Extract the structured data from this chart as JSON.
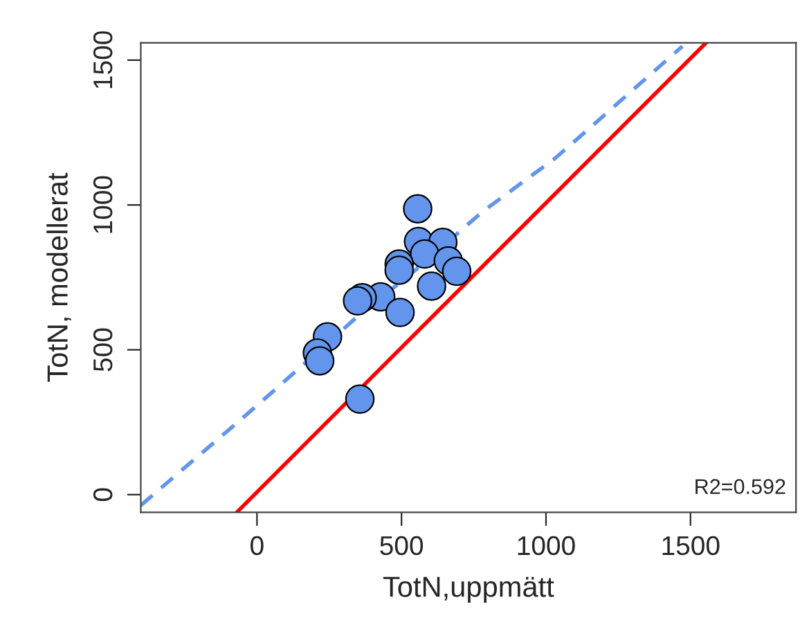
{
  "chart_data": {
    "type": "scatter",
    "xlabel": "TotN,uppmätt",
    "ylabel": "TotN, modellerat",
    "xlim": [
      -402,
      1865
    ],
    "ylim": [
      -61,
      1560
    ],
    "xticks": [
      0,
      500,
      1000,
      1500
    ],
    "yticks": [
      0,
      500,
      1000,
      1500
    ],
    "grid": false,
    "legend": false,
    "series": [
      {
        "color": "#6495ed",
        "marker": "circle",
        "x": [
          556,
          559,
          643,
          580,
          662,
          492,
          492,
          691,
          604,
          428,
          364,
          348,
          495,
          244,
          209,
          217,
          356
        ],
        "values": [
          987,
          874,
          871,
          831,
          807,
          796,
          775,
          771,
          720,
          683,
          680,
          669,
          629,
          545,
          489,
          462,
          330
        ]
      },
      {
        "type": "line",
        "color": "#6495ed",
        "line_style": "dashed",
        "x": [
          -402,
          -61,
          53,
          340,
          548,
          778,
          1030,
          1137,
          1472
        ],
        "values": [
          -37,
          255,
          354,
          608,
          775,
          975,
          1160,
          1253,
          1548
        ]
      },
      {
        "type": "line",
        "color": "#ff0000",
        "line_style": "solid",
        "x": [
          -70,
          1554
        ],
        "values": [
          -61,
          1560
        ]
      }
    ],
    "annotations": [
      {
        "text": "R2=0.592"
      }
    ]
  }
}
